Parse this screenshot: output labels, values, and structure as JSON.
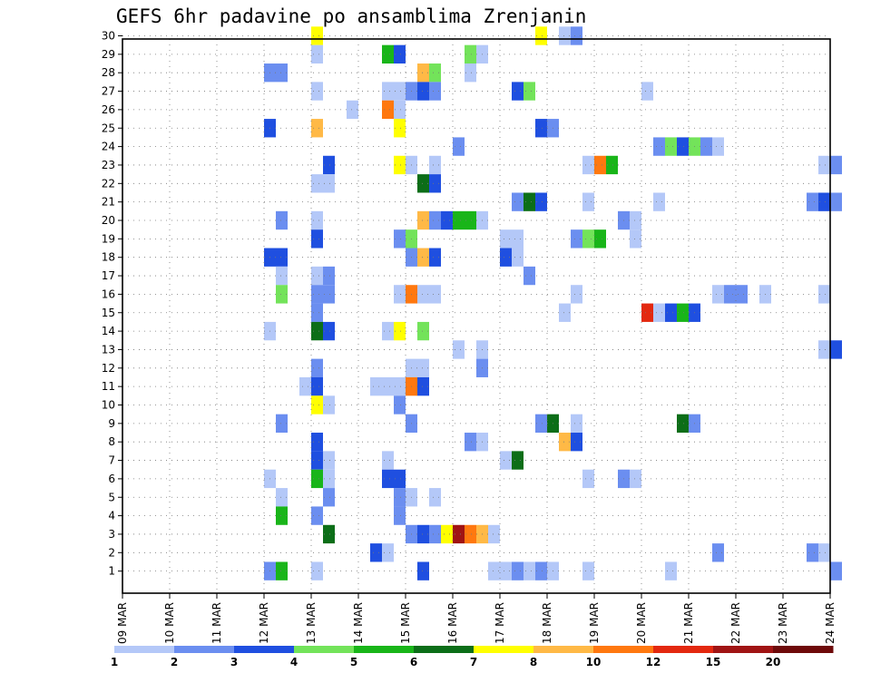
{
  "chart_data": {
    "type": "heatmap",
    "title": "GEFS 6hr padavine po ansamblima Zrenjanin",
    "xlabel": "",
    "ylabel": "",
    "x_tick_labels": [
      "09 MAR",
      "10 MAR",
      "11 MAR",
      "12 MAR",
      "13 MAR",
      "14 MAR",
      "15 MAR",
      "16 MAR",
      "17 MAR",
      "18 MAR",
      "19 MAR",
      "20 MAR",
      "21 MAR",
      "22 MAR",
      "23 MAR",
      "24 MAR"
    ],
    "x_range_days": [
      0,
      15
    ],
    "y_tick_labels": [
      "1",
      "2",
      "3",
      "4",
      "5",
      "6",
      "7",
      "8",
      "9",
      "10",
      "11",
      "12",
      "13",
      "14",
      "15",
      "16",
      "17",
      "18",
      "19",
      "20",
      "21",
      "22",
      "23",
      "24",
      "25",
      "26",
      "27",
      "28",
      "29",
      "30"
    ],
    "y_range": [
      0,
      30
    ],
    "grid": "dotted",
    "cell_width_days": 0.25,
    "colorbar": {
      "labels": [
        "1",
        "2",
        "3",
        "4",
        "5",
        "6",
        "7",
        "8",
        "10",
        "12",
        "15",
        "20"
      ],
      "colors": [
        "#b4c8f8",
        "#6b8ef0",
        "#1f4fe0",
        "#73e35a",
        "#19b519",
        "#0c6e18",
        "#ffff00",
        "#ffb946",
        "#ff780f",
        "#e3280f",
        "#a01414",
        "#6e0a0a"
      ]
    },
    "cells": [
      {
        "x": 4,
        "y": 30,
        "c": 7
      },
      {
        "x": 8.75,
        "y": 30,
        "c": 7
      },
      {
        "x": 9.25,
        "y": 30,
        "c": 1
      },
      {
        "x": 9.5,
        "y": 30,
        "c": 2
      },
      {
        "x": 4,
        "y": 29,
        "c": 1
      },
      {
        "x": 5.5,
        "y": 29,
        "c": 5
      },
      {
        "x": 5.75,
        "y": 29,
        "c": 3
      },
      {
        "x": 7.25,
        "y": 29,
        "c": 4
      },
      {
        "x": 7.5,
        "y": 29,
        "c": 1
      },
      {
        "x": 3,
        "y": 28,
        "c": 2
      },
      {
        "x": 3.25,
        "y": 28,
        "c": 2
      },
      {
        "x": 6.25,
        "y": 28,
        "c": 8
      },
      {
        "x": 6.5,
        "y": 28,
        "c": 4
      },
      {
        "x": 7.25,
        "y": 28,
        "c": 1
      },
      {
        "x": 4,
        "y": 27,
        "c": 1
      },
      {
        "x": 5.5,
        "y": 27,
        "c": 1
      },
      {
        "x": 5.75,
        "y": 27,
        "c": 1
      },
      {
        "x": 6,
        "y": 27,
        "c": 2
      },
      {
        "x": 6.25,
        "y": 27,
        "c": 3
      },
      {
        "x": 6.5,
        "y": 27,
        "c": 2
      },
      {
        "x": 8.25,
        "y": 27,
        "c": 3
      },
      {
        "x": 8.5,
        "y": 27,
        "c": 4
      },
      {
        "x": 11,
        "y": 27,
        "c": 1
      },
      {
        "x": 4.75,
        "y": 26,
        "c": 1
      },
      {
        "x": 5.5,
        "y": 26,
        "c": 9
      },
      {
        "x": 5.75,
        "y": 26,
        "c": 1
      },
      {
        "x": 3,
        "y": 25,
        "c": 3
      },
      {
        "x": 4,
        "y": 25,
        "c": 8
      },
      {
        "x": 5.75,
        "y": 25,
        "c": 7
      },
      {
        "x": 8.75,
        "y": 25,
        "c": 3
      },
      {
        "x": 9,
        "y": 25,
        "c": 2
      },
      {
        "x": 7,
        "y": 24,
        "c": 2
      },
      {
        "x": 11.25,
        "y": 24,
        "c": 2
      },
      {
        "x": 11.5,
        "y": 24,
        "c": 4
      },
      {
        "x": 11.75,
        "y": 24,
        "c": 3
      },
      {
        "x": 12,
        "y": 24,
        "c": 4
      },
      {
        "x": 12.25,
        "y": 24,
        "c": 2
      },
      {
        "x": 12.5,
        "y": 24,
        "c": 1
      },
      {
        "x": 4.25,
        "y": 23,
        "c": 3
      },
      {
        "x": 5.75,
        "y": 23,
        "c": 7
      },
      {
        "x": 6,
        "y": 23,
        "c": 1
      },
      {
        "x": 6.5,
        "y": 23,
        "c": 1
      },
      {
        "x": 9.75,
        "y": 23,
        "c": 1
      },
      {
        "x": 10,
        "y": 23,
        "c": 9
      },
      {
        "x": 10.25,
        "y": 23,
        "c": 5
      },
      {
        "x": 14.75,
        "y": 23,
        "c": 1
      },
      {
        "x": 15,
        "y": 23,
        "c": 2
      },
      {
        "x": 4,
        "y": 22,
        "c": 1
      },
      {
        "x": 4.25,
        "y": 22,
        "c": 1
      },
      {
        "x": 6.25,
        "y": 22,
        "c": 6
      },
      {
        "x": 6.5,
        "y": 22,
        "c": 3
      },
      {
        "x": 8.25,
        "y": 21,
        "c": 2
      },
      {
        "x": 8.5,
        "y": 21,
        "c": 6
      },
      {
        "x": 8.75,
        "y": 21,
        "c": 3
      },
      {
        "x": 9.75,
        "y": 21,
        "c": 1
      },
      {
        "x": 11.25,
        "y": 21,
        "c": 1
      },
      {
        "x": 14.5,
        "y": 21,
        "c": 2
      },
      {
        "x": 14.75,
        "y": 21,
        "c": 3
      },
      {
        "x": 15,
        "y": 21,
        "c": 2
      },
      {
        "x": 3.25,
        "y": 20,
        "c": 2
      },
      {
        "x": 4,
        "y": 20,
        "c": 1
      },
      {
        "x": 6.25,
        "y": 20,
        "c": 8
      },
      {
        "x": 6.5,
        "y": 20,
        "c": 2
      },
      {
        "x": 6.75,
        "y": 20,
        "c": 3
      },
      {
        "x": 7,
        "y": 20,
        "c": 5
      },
      {
        "x": 7.25,
        "y": 20,
        "c": 5
      },
      {
        "x": 7.5,
        "y": 20,
        "c": 1
      },
      {
        "x": 10.5,
        "y": 20,
        "c": 2
      },
      {
        "x": 10.75,
        "y": 20,
        "c": 1
      },
      {
        "x": 4,
        "y": 19,
        "c": 3
      },
      {
        "x": 5.75,
        "y": 19,
        "c": 2
      },
      {
        "x": 6,
        "y": 19,
        "c": 4
      },
      {
        "x": 8,
        "y": 19,
        "c": 1
      },
      {
        "x": 8.25,
        "y": 19,
        "c": 1
      },
      {
        "x": 9.5,
        "y": 19,
        "c": 2
      },
      {
        "x": 9.75,
        "y": 19,
        "c": 4
      },
      {
        "x": 10,
        "y": 19,
        "c": 5
      },
      {
        "x": 10.75,
        "y": 19,
        "c": 1
      },
      {
        "x": 3,
        "y": 18,
        "c": 3
      },
      {
        "x": 3.25,
        "y": 18,
        "c": 3
      },
      {
        "x": 6,
        "y": 18,
        "c": 2
      },
      {
        "x": 6.25,
        "y": 18,
        "c": 8
      },
      {
        "x": 6.5,
        "y": 18,
        "c": 3
      },
      {
        "x": 8,
        "y": 18,
        "c": 3
      },
      {
        "x": 8.25,
        "y": 18,
        "c": 1
      },
      {
        "x": 3.25,
        "y": 17,
        "c": 1
      },
      {
        "x": 4,
        "y": 17,
        "c": 1
      },
      {
        "x": 4.25,
        "y": 17,
        "c": 2
      },
      {
        "x": 8.5,
        "y": 17,
        "c": 2
      },
      {
        "x": 3.25,
        "y": 16,
        "c": 4
      },
      {
        "x": 4,
        "y": 16,
        "c": 2
      },
      {
        "x": 4.25,
        "y": 16,
        "c": 2
      },
      {
        "x": 5.75,
        "y": 16,
        "c": 1
      },
      {
        "x": 6,
        "y": 16,
        "c": 9
      },
      {
        "x": 6.25,
        "y": 16,
        "c": 1
      },
      {
        "x": 6.5,
        "y": 16,
        "c": 1
      },
      {
        "x": 9.5,
        "y": 16,
        "c": 1
      },
      {
        "x": 12.5,
        "y": 16,
        "c": 1
      },
      {
        "x": 12.75,
        "y": 16,
        "c": 2
      },
      {
        "x": 13,
        "y": 16,
        "c": 2
      },
      {
        "x": 13.5,
        "y": 16,
        "c": 1
      },
      {
        "x": 14.75,
        "y": 16,
        "c": 1
      },
      {
        "x": 4,
        "y": 15,
        "c": 2
      },
      {
        "x": 9.25,
        "y": 15,
        "c": 1
      },
      {
        "x": 11,
        "y": 15,
        "c": 10
      },
      {
        "x": 11.25,
        "y": 15,
        "c": 1
      },
      {
        "x": 11.5,
        "y": 15,
        "c": 3
      },
      {
        "x": 11.75,
        "y": 15,
        "c": 5
      },
      {
        "x": 12,
        "y": 15,
        "c": 3
      },
      {
        "x": 3,
        "y": 14,
        "c": 1
      },
      {
        "x": 4,
        "y": 14,
        "c": 6
      },
      {
        "x": 4.25,
        "y": 14,
        "c": 3
      },
      {
        "x": 5.5,
        "y": 14,
        "c": 1
      },
      {
        "x": 5.75,
        "y": 14,
        "c": 7
      },
      {
        "x": 6.25,
        "y": 14,
        "c": 4
      },
      {
        "x": 7,
        "y": 13,
        "c": 1
      },
      {
        "x": 7.5,
        "y": 13,
        "c": 1
      },
      {
        "x": 14.75,
        "y": 13,
        "c": 1
      },
      {
        "x": 15,
        "y": 13,
        "c": 3
      },
      {
        "x": 4,
        "y": 12,
        "c": 2
      },
      {
        "x": 6,
        "y": 12,
        "c": 1
      },
      {
        "x": 6.25,
        "y": 12,
        "c": 1
      },
      {
        "x": 7.5,
        "y": 12,
        "c": 2
      },
      {
        "x": 3.75,
        "y": 11,
        "c": 1
      },
      {
        "x": 4,
        "y": 11,
        "c": 3
      },
      {
        "x": 5.25,
        "y": 11,
        "c": 1
      },
      {
        "x": 5.5,
        "y": 11,
        "c": 1
      },
      {
        "x": 5.75,
        "y": 11,
        "c": 1
      },
      {
        "x": 6,
        "y": 11,
        "c": 9
      },
      {
        "x": 6.25,
        "y": 11,
        "c": 3
      },
      {
        "x": 4,
        "y": 10,
        "c": 7
      },
      {
        "x": 4.25,
        "y": 10,
        "c": 1
      },
      {
        "x": 5.75,
        "y": 10,
        "c": 2
      },
      {
        "x": 3.25,
        "y": 9,
        "c": 2
      },
      {
        "x": 6,
        "y": 9,
        "c": 2
      },
      {
        "x": 8.75,
        "y": 9,
        "c": 2
      },
      {
        "x": 9,
        "y": 9,
        "c": 6
      },
      {
        "x": 9.5,
        "y": 9,
        "c": 1
      },
      {
        "x": 11.75,
        "y": 9,
        "c": 6
      },
      {
        "x": 12,
        "y": 9,
        "c": 2
      },
      {
        "x": 4,
        "y": 8,
        "c": 3
      },
      {
        "x": 7.25,
        "y": 8,
        "c": 2
      },
      {
        "x": 7.5,
        "y": 8,
        "c": 1
      },
      {
        "x": 9.25,
        "y": 8,
        "c": 8
      },
      {
        "x": 9.5,
        "y": 8,
        "c": 3
      },
      {
        "x": 4,
        "y": 7,
        "c": 3
      },
      {
        "x": 4.25,
        "y": 7,
        "c": 1
      },
      {
        "x": 5.5,
        "y": 7,
        "c": 1
      },
      {
        "x": 8,
        "y": 7,
        "c": 1
      },
      {
        "x": 8.25,
        "y": 7,
        "c": 6
      },
      {
        "x": 3,
        "y": 6,
        "c": 1
      },
      {
        "x": 4,
        "y": 6,
        "c": 5
      },
      {
        "x": 4.25,
        "y": 6,
        "c": 1
      },
      {
        "x": 5.5,
        "y": 6,
        "c": 3
      },
      {
        "x": 5.75,
        "y": 6,
        "c": 3
      },
      {
        "x": 9.75,
        "y": 6,
        "c": 1
      },
      {
        "x": 10.5,
        "y": 6,
        "c": 2
      },
      {
        "x": 10.75,
        "y": 6,
        "c": 1
      },
      {
        "x": 3.25,
        "y": 5,
        "c": 1
      },
      {
        "x": 4.25,
        "y": 5,
        "c": 2
      },
      {
        "x": 5.75,
        "y": 5,
        "c": 2
      },
      {
        "x": 6,
        "y": 5,
        "c": 1
      },
      {
        "x": 6.5,
        "y": 5,
        "c": 1
      },
      {
        "x": 3.25,
        "y": 4,
        "c": 5
      },
      {
        "x": 4,
        "y": 4,
        "c": 2
      },
      {
        "x": 5.75,
        "y": 4,
        "c": 2
      },
      {
        "x": 4.25,
        "y": 3,
        "c": 6
      },
      {
        "x": 6,
        "y": 3,
        "c": 2
      },
      {
        "x": 6.25,
        "y": 3,
        "c": 3
      },
      {
        "x": 6.5,
        "y": 3,
        "c": 2
      },
      {
        "x": 6.75,
        "y": 3,
        "c": 7
      },
      {
        "x": 7,
        "y": 3,
        "c": 11
      },
      {
        "x": 7.25,
        "y": 3,
        "c": 9
      },
      {
        "x": 7.5,
        "y": 3,
        "c": 8
      },
      {
        "x": 7.75,
        "y": 3,
        "c": 1
      },
      {
        "x": 5.25,
        "y": 2,
        "c": 3
      },
      {
        "x": 5.5,
        "y": 2,
        "c": 1
      },
      {
        "x": 12.5,
        "y": 2,
        "c": 2
      },
      {
        "x": 14.5,
        "y": 2,
        "c": 2
      },
      {
        "x": 14.75,
        "y": 2,
        "c": 1
      },
      {
        "x": 3,
        "y": 1,
        "c": 2
      },
      {
        "x": 3.25,
        "y": 1,
        "c": 5
      },
      {
        "x": 4,
        "y": 1,
        "c": 1
      },
      {
        "x": 6.25,
        "y": 1,
        "c": 3
      },
      {
        "x": 7.75,
        "y": 1,
        "c": 1
      },
      {
        "x": 8,
        "y": 1,
        "c": 1
      },
      {
        "x": 8.25,
        "y": 1,
        "c": 2
      },
      {
        "x": 8.5,
        "y": 1,
        "c": 1
      },
      {
        "x": 8.75,
        "y": 1,
        "c": 2
      },
      {
        "x": 9,
        "y": 1,
        "c": 1
      },
      {
        "x": 9.75,
        "y": 1,
        "c": 1
      },
      {
        "x": 11.5,
        "y": 1,
        "c": 1
      },
      {
        "x": 15,
        "y": 1,
        "c": 2
      }
    ]
  }
}
